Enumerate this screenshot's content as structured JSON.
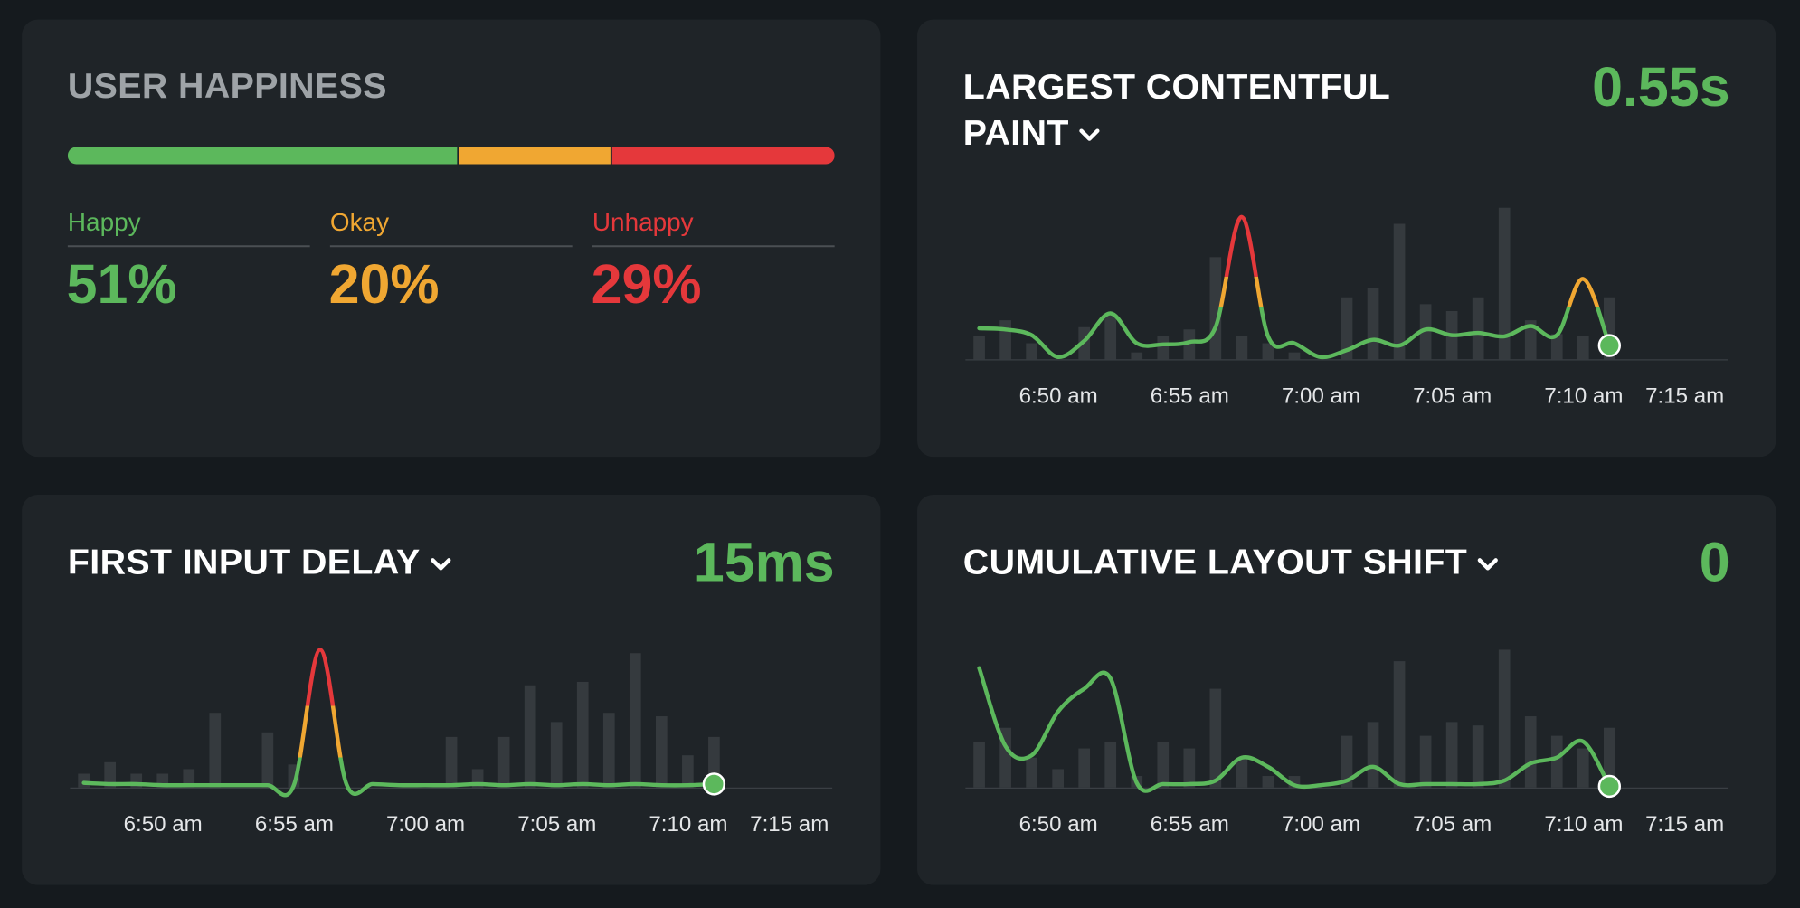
{
  "chart_data": [
    {
      "type": "stacked_bar",
      "title": "USER HAPPINESS",
      "categories": [
        "Happy",
        "Okay",
        "Unhappy"
      ],
      "values": [
        51,
        20,
        29
      ],
      "value_labels": [
        "51%",
        "20%",
        "29%"
      ],
      "colors": [
        "#5cb85c",
        "#f0a732",
        "#e5383b"
      ]
    },
    {
      "type": "line_bar",
      "title": "LARGEST CONTENTFUL PAINT",
      "current": "0.55s",
      "x_labels": [
        "6:50 am",
        "6:55 am",
        "7:00 am",
        "7:05 am",
        "7:10 am",
        "7:15 am"
      ],
      "bars": [
        20,
        34,
        14,
        0,
        28,
        38,
        6,
        20,
        26,
        89,
        20,
        14,
        6,
        0,
        54,
        62,
        118,
        48,
        42,
        54,
        132,
        34,
        22,
        20,
        54
      ],
      "line": [
        27,
        26,
        21,
        2,
        16,
        40,
        14,
        13,
        15,
        28,
        124,
        20,
        14,
        2,
        8,
        17,
        12,
        26,
        21,
        23,
        20,
        29,
        21,
        70,
        12
      ],
      "ylim": [
        0,
        140
      ],
      "thresholds": [
        45,
        72
      ],
      "bar_color": "#353a3e",
      "colors": {
        "good": "#5cb85c",
        "ok": "#f0a732",
        "bad": "#e5383b"
      }
    },
    {
      "type": "line_bar",
      "title": "FIRST INPUT DELAY",
      "current": "15ms",
      "x_labels": [
        "6:50 am",
        "6:55 am",
        "7:00 am",
        "7:05 am",
        "7:10 am",
        "7:15 am"
      ],
      "bars": [
        12,
        22,
        12,
        12,
        16,
        65,
        0,
        48,
        20,
        0,
        0,
        0,
        0,
        0,
        44,
        16,
        44,
        89,
        57,
        92,
        65,
        117,
        62,
        28,
        44
      ],
      "line": [
        4,
        3,
        3,
        2,
        2,
        2,
        2,
        2,
        2,
        120,
        3,
        3,
        2,
        2,
        2,
        3,
        2,
        3,
        2,
        3,
        2,
        3,
        2,
        2,
        3
      ],
      "ylim": [
        0,
        140
      ],
      "thresholds": [
        26,
        71
      ],
      "bar_color": "#353a3e",
      "colors": {
        "good": "#5cb85c",
        "ok": "#f0a732",
        "bad": "#e5383b"
      }
    },
    {
      "type": "line_bar",
      "title": "CUMULATIVE LAYOUT SHIFT",
      "current": "0",
      "x_labels": [
        "6:50 am",
        "6:55 am",
        "7:00 am",
        "7:05 am",
        "7:10 am",
        "7:15 am"
      ],
      "bars": [
        40,
        52,
        26,
        16,
        34,
        40,
        10,
        40,
        34,
        86,
        26,
        10,
        10,
        0,
        45,
        57,
        110,
        45,
        57,
        54,
        120,
        62,
        45,
        34,
        52
      ],
      "line": [
        104,
        36,
        28,
        66,
        86,
        95,
        4,
        3,
        3,
        6,
        26,
        18,
        2,
        2,
        6,
        18,
        3,
        3,
        3,
        3,
        6,
        21,
        26,
        40,
        1
      ],
      "ylim": [
        0,
        140
      ],
      "bar_color": "#353a3e",
      "colors": {
        "good": "#5cb85c"
      }
    }
  ]
}
